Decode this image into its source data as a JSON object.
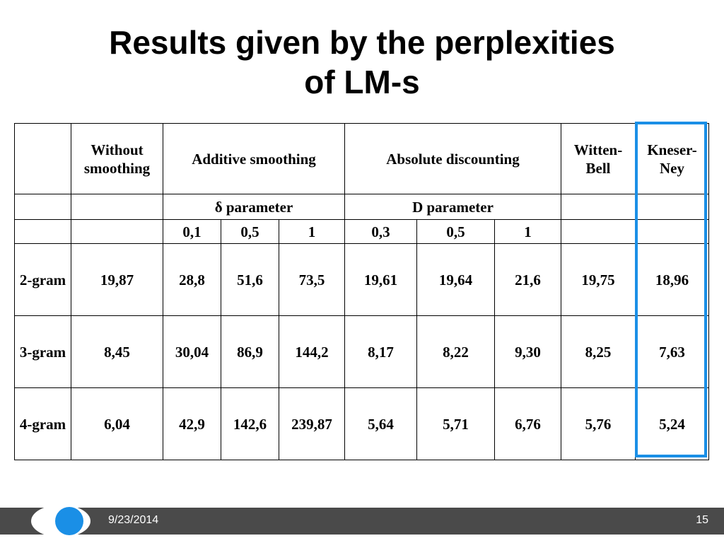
{
  "slide": {
    "title_line1": "Results given by the perplexities",
    "title_line2": "of LM-s"
  },
  "table": {
    "headers": {
      "without_smoothing": "Without smoothing",
      "additive_smoothing": "Additive smoothing",
      "absolute_discounting": "Absolute discounting",
      "witten_bell": "Witten-Bell",
      "kneser_ney": "Kneser-Ney"
    },
    "params": {
      "delta": "δ parameter",
      "d": "D parameter"
    },
    "additive_params": [
      "0,1",
      "0,5",
      "1"
    ],
    "absolute_params": [
      "0,3",
      "0,5",
      "1"
    ],
    "rows": [
      {
        "label": "2-gram",
        "values": [
          "19,87",
          "28,8",
          "51,6",
          "73,5",
          "19,61",
          "19,64",
          "21,6",
          "19,75",
          "18,96"
        ]
      },
      {
        "label": "3-gram",
        "values": [
          "8,45",
          "30,04",
          "86,9",
          "144,2",
          "8,17",
          "8,22",
          "9,30",
          "8,25",
          "7,63"
        ]
      },
      {
        "label": "4-gram",
        "values": [
          "6,04",
          "42,9",
          "142,6",
          "239,87",
          "5,64",
          "5,71",
          "6,76",
          "5,76",
          "5,24"
        ]
      }
    ]
  },
  "footer": {
    "date": "9/23/2014",
    "page_number": "15"
  },
  "colors": {
    "accent": "#1a8fe6",
    "footer_bar": "#4a4a4a"
  }
}
